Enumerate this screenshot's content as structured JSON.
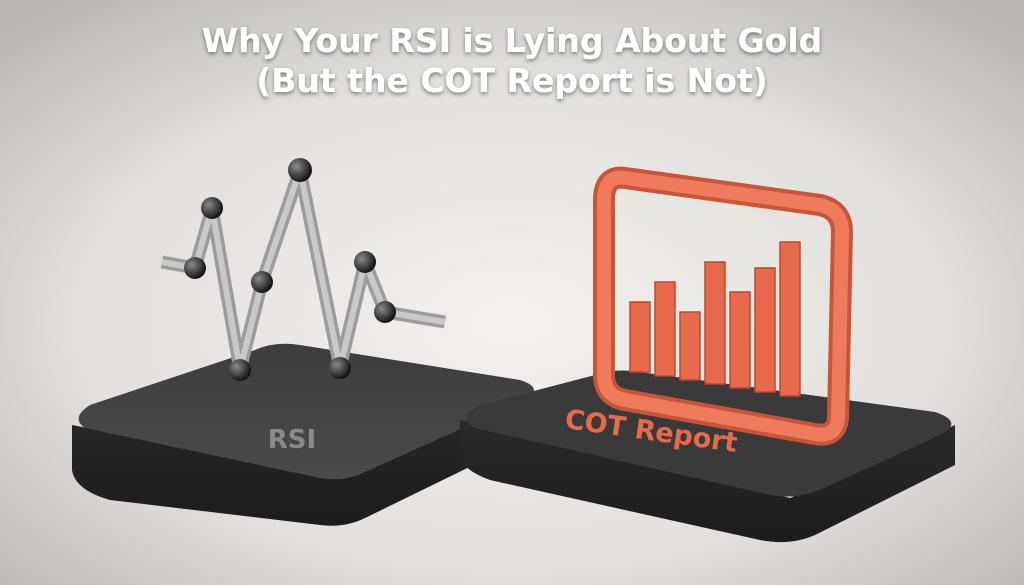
{
  "title": {
    "line1": "Why Your RSI is Lying About Gold",
    "line2": "(But the COT Report is Not)"
  },
  "labels": {
    "rsi": "RSI",
    "cot": "COT Report"
  }
}
